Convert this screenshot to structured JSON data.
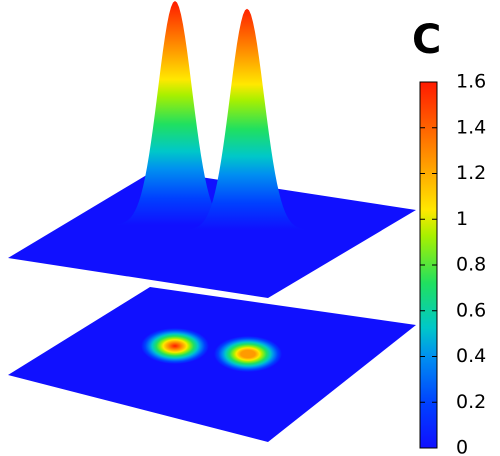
{
  "chart_data": {
    "type": "surface",
    "colorbar_title": "C",
    "colormap": "jet",
    "values": [
      1.6,
      1.58
    ],
    "clim": [
      0,
      1.6
    ],
    "cticks": [
      0,
      0.2,
      0.4,
      0.6,
      0.8,
      1,
      1.2,
      1.4,
      1.6
    ]
  }
}
